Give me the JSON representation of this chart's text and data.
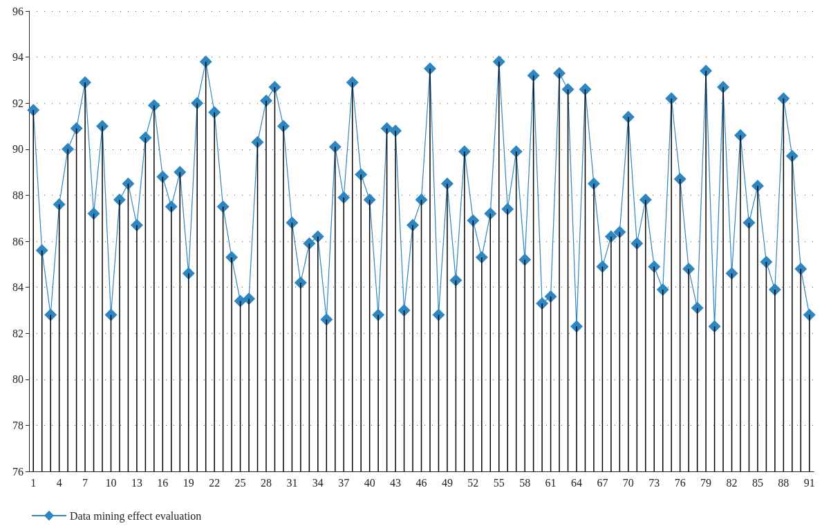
{
  "chart_data": {
    "type": "line",
    "categories": [
      "1",
      null,
      null,
      "4",
      null,
      null,
      "7",
      null,
      null,
      "10",
      null,
      null,
      "13",
      null,
      null,
      "16",
      null,
      null,
      "19",
      null,
      null,
      "22",
      null,
      null,
      "25",
      null,
      null,
      "28",
      null,
      null,
      "31",
      null,
      null,
      "34",
      null,
      null,
      "37",
      null,
      null,
      "40",
      null,
      null,
      "43",
      null,
      null,
      "46",
      null,
      null,
      "49",
      null,
      null,
      "52",
      null,
      null,
      "55",
      null,
      null,
      "58",
      null,
      null,
      "61",
      null,
      null,
      "64",
      null,
      null,
      "67",
      null,
      null,
      "70",
      null,
      null,
      "73",
      null,
      null,
      "76",
      null,
      null,
      "79",
      null,
      null,
      "82",
      null,
      null,
      "85",
      null,
      null,
      "88",
      null,
      null,
      "91"
    ],
    "series": [
      {
        "type": "bar",
        "color": "#000000",
        "values": [
          91.7,
          85.6,
          82.8,
          87.6,
          90.0,
          90.9,
          92.9,
          87.2,
          91.0,
          82.8,
          87.8,
          88.5,
          86.7,
          90.5,
          91.9,
          88.8,
          87.5,
          89.0,
          84.6,
          92.0,
          93.8,
          91.6,
          87.5,
          85.3,
          83.4,
          83.5,
          90.3,
          92.1,
          92.7,
          91.0,
          86.8,
          84.2,
          85.9,
          86.2,
          82.6,
          90.1,
          87.9,
          92.9,
          88.9,
          87.8,
          82.8,
          90.9,
          90.8,
          83.0,
          86.7,
          87.8,
          93.5,
          82.8,
          88.5,
          84.3,
          89.9,
          86.9,
          85.3,
          87.2,
          93.8,
          87.4,
          89.9,
          85.2,
          93.2,
          83.3,
          83.6,
          93.3,
          92.6,
          82.3,
          92.6,
          88.5,
          84.9,
          86.2,
          86.4,
          91.4,
          85.9,
          87.8,
          84.9,
          83.9,
          92.2,
          88.7,
          84.8,
          83.1,
          93.4,
          82.3,
          92.7,
          84.6,
          90.6,
          86.8,
          88.4,
          85.1,
          83.9,
          92.2,
          89.7,
          84.8,
          82.8
        ]
      },
      {
        "name": "Data mining effect evaluation",
        "color": "#2e86c1",
        "values": [
          91.7,
          85.6,
          82.8,
          87.6,
          90.0,
          90.9,
          92.9,
          87.2,
          91.0,
          82.8,
          87.8,
          88.5,
          86.7,
          90.5,
          91.9,
          88.8,
          87.5,
          89.0,
          84.6,
          92.0,
          93.8,
          91.6,
          87.5,
          85.3,
          83.4,
          83.5,
          90.3,
          92.1,
          92.7,
          91.0,
          86.8,
          84.2,
          85.9,
          86.2,
          82.6,
          90.1,
          87.9,
          92.9,
          88.9,
          87.8,
          82.8,
          90.9,
          90.8,
          83.0,
          86.7,
          87.8,
          93.5,
          82.8,
          88.5,
          84.3,
          89.9,
          86.9,
          85.3,
          87.2,
          93.8,
          87.4,
          89.9,
          85.2,
          93.2,
          83.3,
          83.6,
          93.3,
          92.6,
          82.3,
          92.6,
          88.5,
          84.9,
          86.2,
          86.4,
          91.4,
          85.9,
          87.8,
          84.9,
          83.9,
          92.2,
          88.7,
          84.8,
          83.1,
          93.4,
          82.3,
          92.7,
          84.6,
          90.6,
          86.8,
          88.4,
          85.1,
          83.9,
          92.2,
          89.7,
          84.8,
          82.8
        ]
      }
    ],
    "ylim": [
      76,
      96
    ],
    "yticks": [
      76,
      78,
      80,
      82,
      84,
      86,
      88,
      90,
      92,
      94,
      96
    ],
    "grid": "y",
    "legend": "bottom left",
    "marker": "diamond",
    "line_style": "solid"
  }
}
